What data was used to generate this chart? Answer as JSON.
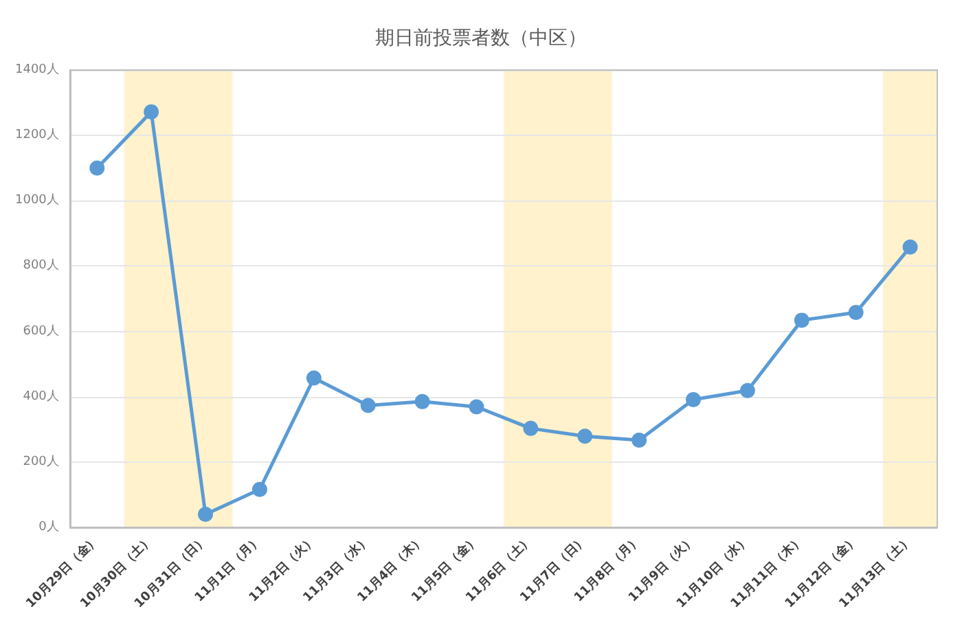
{
  "chart_data": {
    "type": "line",
    "title": "期日前投票者数（中区）",
    "categories": [
      "10月29日（金）",
      "10月30日（土）",
      "10月31日（日）",
      "11月1日（月）",
      "11月2日（火）",
      "11月3日（水）",
      "11月4日（木）",
      "11月5日（金）",
      "11月6日（土）",
      "11月7日（日）",
      "11月8日（月）",
      "11月9日（火）",
      "11月10日（水）",
      "11月11日（木）",
      "11月12日（金）",
      "11月13日（土）"
    ],
    "series": [
      {
        "color": "#5b9bd5",
        "values": [
          1100,
          1272,
          40,
          116,
          457,
          373,
          385,
          369,
          303,
          279,
          267,
          391,
          419,
          634,
          658,
          858
        ]
      }
    ],
    "ylim": [
      0,
      1400
    ],
    "yticks": [
      {
        "value": 0,
        "label": "0人"
      },
      {
        "value": 200,
        "label": "200人"
      },
      {
        "value": 400,
        "label": "400人"
      },
      {
        "value": 600,
        "label": "600人"
      },
      {
        "value": 800,
        "label": "800人"
      },
      {
        "value": 1000,
        "label": "1000人"
      },
      {
        "value": 1200,
        "label": "1200人"
      },
      {
        "value": 1400,
        "label": "1400人"
      }
    ],
    "bands": [
      {
        "axis": "x",
        "from": "10月30日（土）",
        "to": "10月31日（日）",
        "color": "#fff2cc"
      },
      {
        "axis": "x",
        "from": "11月6日（土）",
        "to": "11月7日（日）",
        "color": "#fff2cc"
      },
      {
        "axis": "x",
        "from": "11月13日（土）",
        "to": "11月13日（土）",
        "color": "#fff2cc"
      }
    ],
    "grid": "y",
    "marker": "circle",
    "line_style": "solid"
  }
}
